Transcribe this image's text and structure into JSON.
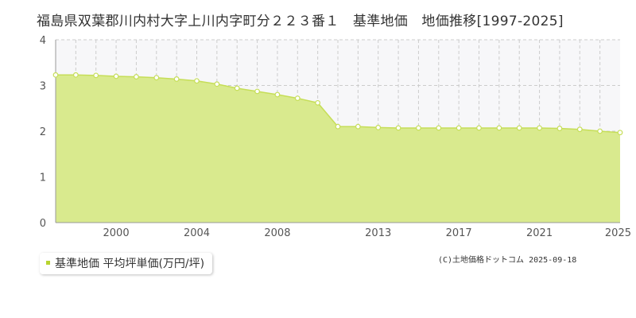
{
  "chart_data": {
    "type": "area",
    "title": "福島県双葉郡川内村大字上川内字町分２２３番１　基準地価　地価推移[1997-2025]",
    "xlabel": "",
    "ylabel": "",
    "xlim": [
      1997,
      2025
    ],
    "ylim": [
      0,
      4
    ],
    "x_ticks": [
      2000,
      2004,
      2008,
      2013,
      2017,
      2021,
      2025
    ],
    "y_ticks": [
      0,
      1,
      2,
      3,
      4
    ],
    "grid": true,
    "legend_placement": "bottom-left",
    "x": [
      1997,
      1998,
      1999,
      2000,
      2001,
      2002,
      2003,
      2004,
      2005,
      2006,
      2007,
      2008,
      2009,
      2010,
      2011,
      2012,
      2013,
      2014,
      2015,
      2016,
      2017,
      2018,
      2019,
      2020,
      2021,
      2022,
      2023,
      2024,
      2025
    ],
    "series": [
      {
        "name": "基準地価 平均坪単価(万円/坪)",
        "values": [
          3.23,
          3.23,
          3.22,
          3.2,
          3.19,
          3.17,
          3.14,
          3.1,
          3.03,
          2.94,
          2.87,
          2.8,
          2.72,
          2.62,
          2.1,
          2.1,
          2.08,
          2.07,
          2.07,
          2.07,
          2.07,
          2.07,
          2.07,
          2.07,
          2.07,
          2.06,
          2.04,
          2.0,
          1.97
        ]
      }
    ]
  },
  "colors": {
    "area_fill": "#d9ea8e",
    "line": "#c6de58",
    "marker_fill": "#ffffff",
    "background_above": "#f7f7f9",
    "grid": "#cccccc",
    "legend_marker": "#b8d430"
  },
  "legend": {
    "label": "基準地価 平均坪単価(万円/坪)"
  },
  "credit": "(C)土地価格ドットコム 2025-09-18"
}
